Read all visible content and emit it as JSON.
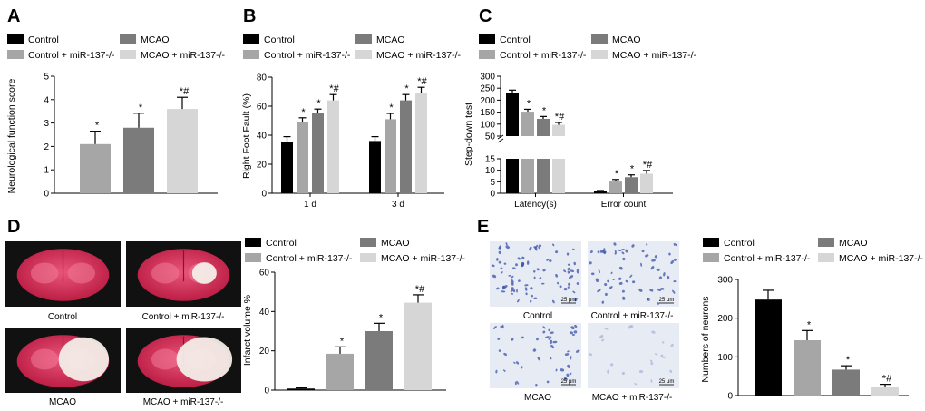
{
  "panel_letters": [
    "A",
    "B",
    "C",
    "D",
    "E"
  ],
  "groups": [
    {
      "name": "Control",
      "color": "#000000"
    },
    {
      "name": "MCAO",
      "color": "#7b7b7b"
    },
    {
      "name": "Control + miR-137-/-",
      "color": "#a6a6a6"
    },
    {
      "name": "MCAO + miR-137-/-",
      "color": "#d6d6d6"
    }
  ],
  "chart_data": [
    {
      "panel": "A",
      "type": "bar",
      "ylabel": "Neurological function score",
      "ylim": [
        0,
        5
      ],
      "yticks": [
        0,
        1,
        2,
        3,
        4,
        5
      ],
      "series": [
        {
          "name": "Control",
          "value": 0,
          "error": 0,
          "annotation": ""
        },
        {
          "name": "Control + miR-137-/-",
          "value": 2.1,
          "error": 0.55,
          "annotation": "*"
        },
        {
          "name": "MCAO",
          "value": 2.8,
          "error": 0.62,
          "annotation": "*"
        },
        {
          "name": "MCAO + miR-137-/-",
          "value": 3.6,
          "error": 0.5,
          "annotation": "*#"
        }
      ]
    },
    {
      "panel": "B",
      "type": "bar",
      "ylabel": "Right Foot Fault (%)",
      "ylim": [
        0,
        80
      ],
      "yticks": [
        0,
        20,
        40,
        60,
        80
      ],
      "categories": [
        "1 d",
        "3 d"
      ],
      "series": [
        {
          "name": "Control",
          "values": [
            35,
            36
          ],
          "errors": [
            4,
            3
          ],
          "annotations": [
            "",
            ""
          ]
        },
        {
          "name": "Control + miR-137-/-",
          "values": [
            49,
            51
          ],
          "errors": [
            3,
            4
          ],
          "annotations": [
            "*",
            "*"
          ]
        },
        {
          "name": "MCAO",
          "values": [
            55,
            64
          ],
          "errors": [
            3,
            4
          ],
          "annotations": [
            "*",
            "*"
          ]
        },
        {
          "name": "MCAO + miR-137-/-",
          "values": [
            64,
            69
          ],
          "errors": [
            4,
            4
          ],
          "annotations": [
            "*#",
            "*#"
          ]
        }
      ]
    },
    {
      "panel": "C",
      "type": "bar",
      "ylabel": "Step-down test",
      "axis_break": true,
      "yticks_lower": [
        0,
        5,
        10,
        15
      ],
      "yticks_upper": [
        50,
        100,
        150,
        200,
        250,
        300
      ],
      "categories": [
        "Latency(s)",
        "Error count"
      ],
      "series": [
        {
          "name": "Control",
          "values": [
            230,
            1
          ],
          "errors": [
            12,
            0.2
          ],
          "annotations": [
            "",
            ""
          ]
        },
        {
          "name": "Control + miR-137-/-",
          "values": [
            152,
            5.1
          ],
          "errors": [
            10,
            0.9
          ],
          "annotations": [
            "*",
            "*"
          ]
        },
        {
          "name": "MCAO",
          "values": [
            122,
            7
          ],
          "errors": [
            10,
            1
          ],
          "annotations": [
            "*",
            "*"
          ]
        },
        {
          "name": "MCAO + miR-137-/-",
          "values": [
            97,
            8.5
          ],
          "errors": [
            10,
            1.4
          ],
          "annotations": [
            "*#",
            "*#"
          ]
        }
      ]
    },
    {
      "panel": "D",
      "type": "bar",
      "ylabel": "Infarct volume %",
      "ylim": [
        0,
        60
      ],
      "yticks": [
        0,
        20,
        40,
        60
      ],
      "series": [
        {
          "name": "Control",
          "value": 0.8,
          "error": 0.3,
          "annotation": ""
        },
        {
          "name": "Control + miR-137-/-",
          "value": 18.5,
          "error": 3.5,
          "annotation": "*"
        },
        {
          "name": "MCAO",
          "value": 30,
          "error": 4,
          "annotation": "*"
        },
        {
          "name": "MCAO + miR-137-/-",
          "value": 44.5,
          "error": 4,
          "annotation": "*#"
        }
      ]
    },
    {
      "panel": "E",
      "type": "bar",
      "ylabel": "Numbers of neurons",
      "ylim": [
        0,
        300
      ],
      "yticks": [
        0,
        100,
        200,
        300
      ],
      "series": [
        {
          "name": "Control",
          "value": 248,
          "error": 24,
          "annotation": ""
        },
        {
          "name": "Control + miR-137-/-",
          "value": 143,
          "error": 25,
          "annotation": "*"
        },
        {
          "name": "MCAO",
          "value": 67,
          "error": 10,
          "annotation": "*"
        },
        {
          "name": "MCAO + miR-137-/-",
          "value": 22,
          "error": 7,
          "annotation": "*#"
        }
      ]
    }
  ],
  "images_D": {
    "captions": [
      "Control",
      "Control + miR-137-/-",
      "MCAO",
      "MCAO + miR-137-/-"
    ]
  },
  "images_E": {
    "captions": [
      "Control",
      "Control + miR-137-/-",
      "MCAO",
      "MCAO + miR-137-/-"
    ],
    "scale_bar": "25 μm"
  }
}
